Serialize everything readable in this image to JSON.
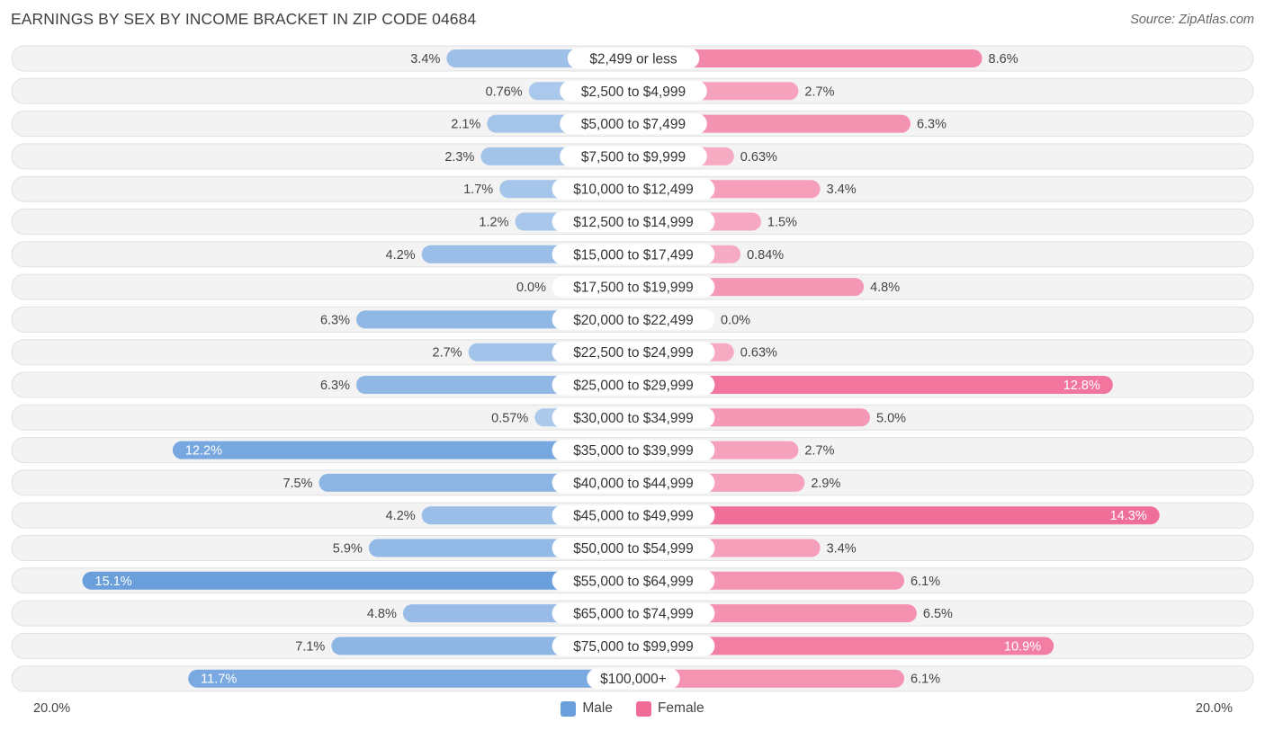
{
  "title": "EARNINGS BY SEX BY INCOME BRACKET IN ZIP CODE 04684",
  "source": "Source: ZipAtlas.com",
  "chart_data": {
    "type": "bar",
    "orientation": "horizontal-diverging",
    "title": "EARNINGS BY SEX BY INCOME BRACKET IN ZIP CODE 04684",
    "categories": [
      "$2,499 or less",
      "$2,500 to $4,999",
      "$5,000 to $7,499",
      "$7,500 to $9,999",
      "$10,000 to $12,499",
      "$12,500 to $14,999",
      "$15,000 to $17,499",
      "$17,500 to $19,999",
      "$20,000 to $22,499",
      "$22,500 to $24,999",
      "$25,000 to $29,999",
      "$30,000 to $34,999",
      "$35,000 to $39,999",
      "$40,000 to $44,999",
      "$45,000 to $49,999",
      "$50,000 to $54,999",
      "$55,000 to $64,999",
      "$65,000 to $74,999",
      "$75,000 to $99,999",
      "$100,000+"
    ],
    "series": [
      {
        "name": "Male",
        "color": "#6a9fdc",
        "values": [
          3.4,
          0.76,
          2.1,
          2.3,
          1.7,
          1.2,
          4.2,
          0.0,
          6.3,
          2.7,
          6.3,
          0.57,
          12.2,
          7.5,
          4.2,
          5.9,
          15.1,
          4.8,
          7.1,
          11.7
        ],
        "labels": [
          "3.4%",
          "0.76%",
          "2.1%",
          "2.3%",
          "1.7%",
          "1.2%",
          "4.2%",
          "0.0%",
          "6.3%",
          "2.7%",
          "6.3%",
          "0.57%",
          "12.2%",
          "7.5%",
          "4.2%",
          "5.9%",
          "15.1%",
          "4.8%",
          "7.1%",
          "11.7%"
        ]
      },
      {
        "name": "Female",
        "color": "#f06b96",
        "values": [
          8.6,
          2.7,
          6.3,
          0.63,
          3.4,
          1.5,
          0.84,
          4.8,
          0.0,
          0.63,
          12.8,
          5.0,
          2.7,
          2.9,
          14.3,
          3.4,
          6.1,
          6.5,
          10.9,
          6.1
        ],
        "labels": [
          "8.6%",
          "2.7%",
          "6.3%",
          "0.63%",
          "3.4%",
          "1.5%",
          "0.84%",
          "4.8%",
          "0.0%",
          "0.63%",
          "12.8%",
          "5.0%",
          "2.7%",
          "2.9%",
          "14.3%",
          "3.4%",
          "6.1%",
          "6.5%",
          "10.9%",
          "6.1%"
        ]
      }
    ],
    "xlim": [
      -20,
      20
    ],
    "axis_labels": {
      "left": "20.0%",
      "right": "20.0%"
    },
    "legend": {
      "position": "bottom-center",
      "entries": [
        "Male",
        "Female"
      ]
    }
  }
}
